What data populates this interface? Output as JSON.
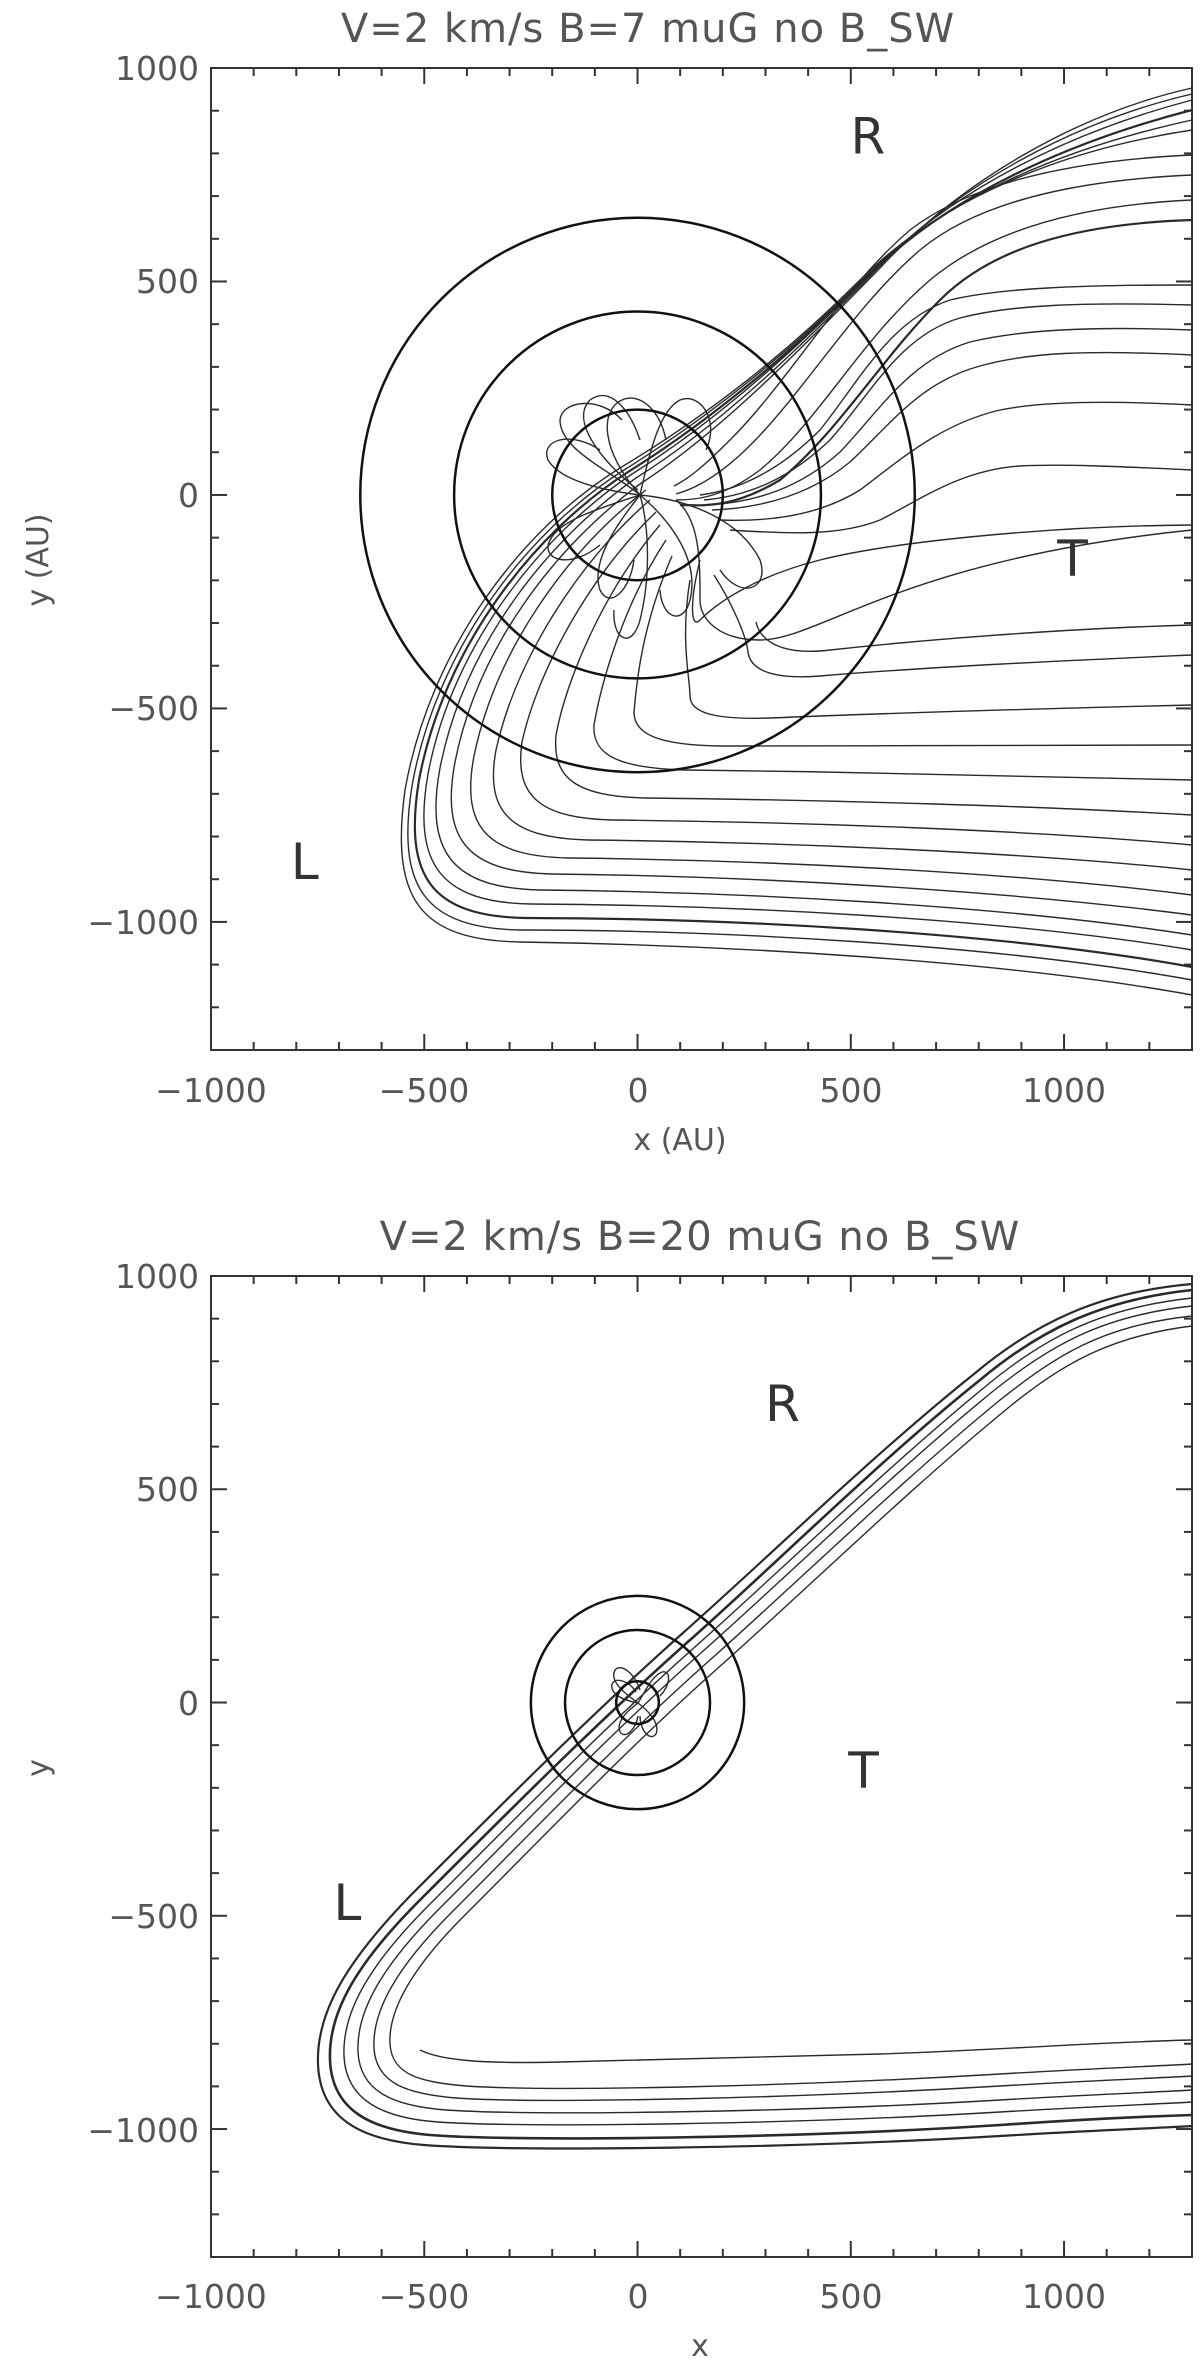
{
  "chart_data": [
    {
      "type": "line",
      "title": "V=2 km/s B=7 muG no B_SW",
      "xlabel": "x (AU)",
      "ylabel": "y (AU)",
      "xlim": [
        -1000,
        1300
      ],
      "ylim": [
        -1300,
        1000
      ],
      "xticks": [
        -1000,
        -500,
        0,
        500,
        1000
      ],
      "xtick_labels": [
        "−1000",
        "−500",
        "0",
        "500",
        "1000"
      ],
      "yticks": [
        1000,
        500,
        0,
        -500,
        -1000
      ],
      "ytick_labels": [
        "1000",
        "500",
        "0",
        "−500",
        "−1000"
      ],
      "grid": false,
      "circles_radii": [
        200,
        430,
        650
      ],
      "annotations": [
        {
          "text": "R",
          "x": 540,
          "y": 840
        },
        {
          "text": "T",
          "x": 1020,
          "y": -150
        },
        {
          "text": "L",
          "x": -780,
          "y": -860
        }
      ]
    },
    {
      "type": "line",
      "title": "V=2 km/s B=20 muG no B_SW",
      "xlabel": "x",
      "ylabel": "y",
      "xlim": [
        -1000,
        1300
      ],
      "ylim": [
        -1300,
        1000
      ],
      "xticks": [
        -1000,
        -500,
        0,
        500,
        1000
      ],
      "xtick_labels": [
        "−1000",
        "−500",
        "0",
        "500",
        "1000"
      ],
      "yticks": [
        1000,
        500,
        0,
        -500,
        -1000
      ],
      "ytick_labels": [
        "1000",
        "500",
        "0",
        "−500",
        "−1000"
      ],
      "grid": false,
      "circles_radii": [
        50,
        170,
        250
      ],
      "annotations": [
        {
          "text": "R",
          "x": 340,
          "y": 700
        },
        {
          "text": "T",
          "x": 530,
          "y": -160
        },
        {
          "text": "L",
          "x": -680,
          "y": -470
        }
      ]
    }
  ]
}
